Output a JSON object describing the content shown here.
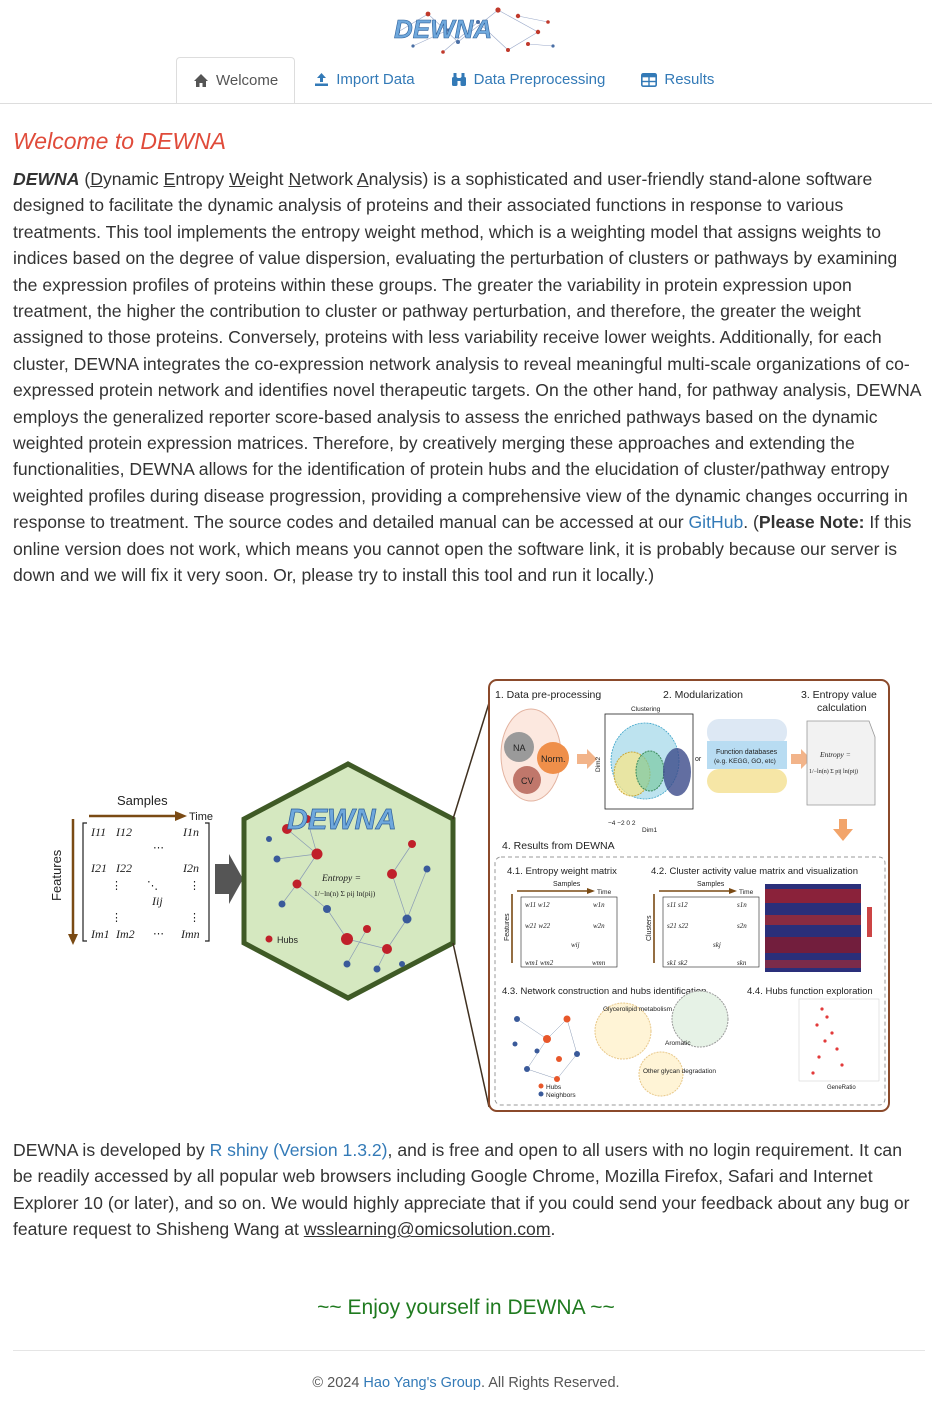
{
  "app": {
    "logo_text": "DEWNA"
  },
  "nav": {
    "tabs": [
      {
        "label": "Welcome",
        "icon": "home-icon",
        "active": true
      },
      {
        "label": "Import Data",
        "icon": "upload-icon",
        "active": false
      },
      {
        "label": "Data Preprocessing",
        "icon": "binoculars-icon",
        "active": false
      },
      {
        "label": "Results",
        "icon": "table-icon",
        "active": false
      }
    ]
  },
  "welcome": {
    "title": "Welcome to DEWNA",
    "lead_bold": "DEWNA",
    "acronym": {
      "open": "(",
      "d1": "D",
      "d2": "ynamic ",
      "e1": "E",
      "e2": "ntropy ",
      "w1": "W",
      "w2": "eight ",
      "n1": "N",
      "n2": "etwork ",
      "a1": "A",
      "a2": "nalysis",
      "close": ")"
    },
    "text_main": " is a sophisticated and user-friendly stand-alone software designed to facilitate the dynamic analysis of proteins and their associated functions in response to various treatments. This tool implements the entropy weight method, which is a weighting model that assigns weights to indices based on the degree of value dispersion, evaluating the perturbation of clusters or pathways by examining the expression profiles of proteins within these groups. The greater the variability in protein expression upon treatment, the higher the contribution to cluster or pathway perturbation, and therefore, the greater the weight assigned to those proteins. Conversely, proteins with less variability receive lower weights. Additionally, for each cluster, DEWNA integrates the co-expression network analysis to reveal meaningful multi-scale organizations of co-expressed protein network and identifies novel therapeutic targets. On the other hand, for pathway analysis, DEWNA employs the generalized reporter score-based analysis to assess the enriched pathways based on the dynamic weighted protein expression matrices. Therefore, by creatively merging these approaches and extending the functionalities, DEWNA allows for the identification of protein hubs and the elucidation of cluster/pathway entropy weighted profiles during disease progression, providing a comprehensive view of the dynamic changes occurring in response to treatment. The source codes and detailed manual can be accessed at our ",
    "github_link": "GitHub",
    "after_link": ". (",
    "note_label": "Please Note:",
    "note_text": " If this online version does not work, which means you cannot open the software link, it is probably because our server is down and we will fix it very soon. Or, please try to install this tool and run it locally.)"
  },
  "figure": {
    "left": {
      "samples": "Samples",
      "time": "Time",
      "features": "Features",
      "m11": "I11",
      "m12": "I12",
      "m1n": "I1n",
      "m21": "I21",
      "m22": "I22",
      "m2n": "I2n",
      "mij": "Iij",
      "mm1": "Im1",
      "mm2": "Im2",
      "mmn": "Imn"
    },
    "hex": {
      "logo": "DEWNA",
      "entropy": "Entropy =",
      "formula": "1/−ln(n) Σ pij ln(pij)",
      "hubs": "Hubs"
    },
    "panel": {
      "s1": "1. Data pre-processing",
      "s2": "2. Modularization",
      "s3a": "3. Entropy value",
      "s3b": "calculation",
      "na": "NA",
      "norm": "Norm.",
      "cv": "CV",
      "clustering": "Clustering",
      "dim1": "Dim1",
      "dim2": "Dim2",
      "or": "or",
      "fdb1": "Function databases",
      "fdb2": "(e.g. KEGG, GO, etc)",
      "entropy": "Entropy =",
      "formula": "1/−ln(n) Σ pij ln(pij)",
      "s4": "4. Results from DEWNA",
      "s41": "4.1. Entropy weight matrix",
      "s42": "4.2. Cluster activity value matrix and visualization",
      "s43": "4.3. Network construction and hubs identification",
      "s44": "4.4. Hubs function exploration",
      "samples": "Samples",
      "time": "Time",
      "features": "Features",
      "clusters": "Clusters",
      "hubs": "Hubs",
      "neighbors": "Neighbors",
      "glycero": "Glycerolipid metabolism",
      "other_glycan": "Other glycan degradation",
      "aromatic": "Aromatic",
      "gene_ratio": "GeneRatio"
    }
  },
  "about": {
    "text1": "DEWNA is developed by ",
    "rshiny": "R shiny (Version 1.3.2)",
    "text2": ", and is free and open to all users with no login requirement. It can be readily accessed by all popular web browsers including Google Chrome, Mozilla Firefox, Safari and Internet Explorer 10 (or later), and so on. We would highly appreciate that if you could send your feedback about any bug or feature request to Shisheng Wang at ",
    "email": "wsslearning@omicsolution.com",
    "text3": "."
  },
  "enjoy": "~~ Enjoy yourself in DEWNA ~~",
  "footer": {
    "prefix": "© 2024 ",
    "group": "Hao Yang's Group",
    "suffix": ". All Rights Reserved."
  },
  "colors": {
    "title_red": "#e04b3a",
    "link_blue": "#337ab7",
    "enjoy_green": "#1f7a1f",
    "hex_fill": "#d5e8c0",
    "hex_border": "#3f5a26",
    "panel_border": "#8b4a2b"
  }
}
